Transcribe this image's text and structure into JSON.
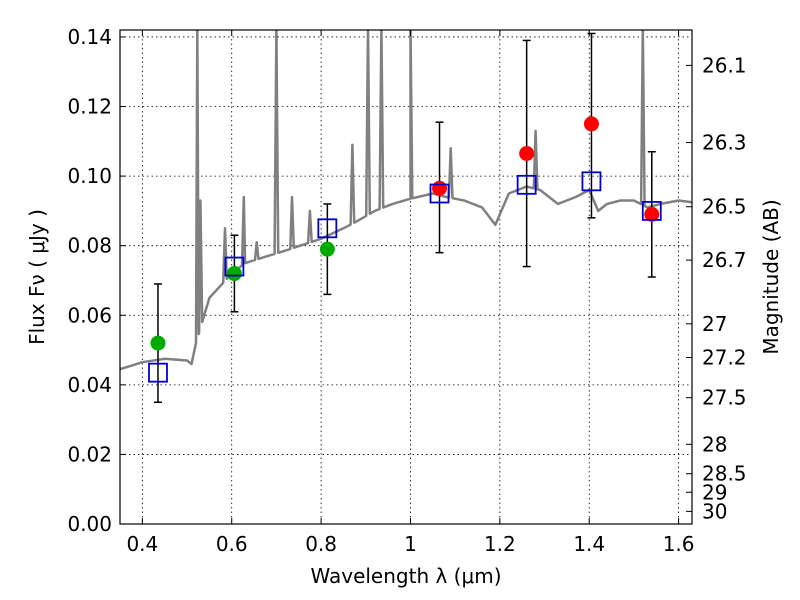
{
  "chart_data": {
    "type": "scatter",
    "xlabel": "Wavelength  λ (μm)",
    "ylabel": "Flux  Fν  ( μJy )",
    "ylabel_right": "Magnitude (AB)",
    "xlim": [
      0.35,
      1.63
    ],
    "ylim": [
      0.0,
      0.142
    ],
    "grid": true,
    "x_ticks": [
      {
        "value": 0.4,
        "label": "0.4"
      },
      {
        "value": 0.6,
        "label": "0.6"
      },
      {
        "value": 0.8,
        "label": "0.8"
      },
      {
        "value": 1.0,
        "label": "1"
      },
      {
        "value": 1.2,
        "label": "1.2"
      },
      {
        "value": 1.4,
        "label": "1.4"
      },
      {
        "value": 1.6,
        "label": "1.6"
      }
    ],
    "y_ticks": [
      {
        "value": 0.0,
        "label": "0.00"
      },
      {
        "value": 0.02,
        "label": "0.02"
      },
      {
        "value": 0.04,
        "label": "0.04"
      },
      {
        "value": 0.06,
        "label": "0.06"
      },
      {
        "value": 0.08,
        "label": "0.08"
      },
      {
        "value": 0.1,
        "label": "0.10"
      },
      {
        "value": 0.12,
        "label": "0.12"
      },
      {
        "value": 0.14,
        "label": "0.14"
      }
    ],
    "mag_ticks": [
      {
        "value": 26.1,
        "label": "26.1"
      },
      {
        "value": 26.3,
        "label": "26.3"
      },
      {
        "value": 26.5,
        "label": "26.5"
      },
      {
        "value": 26.7,
        "label": "26.7"
      },
      {
        "value": 27.0,
        "label": "27"
      },
      {
        "value": 27.2,
        "label": "27.2"
      },
      {
        "value": 27.5,
        "label": "27.5"
      },
      {
        "value": 28.0,
        "label": "28"
      },
      {
        "value": 28.5,
        "label": "28.5"
      },
      {
        "value": 29.0,
        "label": "29"
      },
      {
        "value": 30.0,
        "label": "30"
      }
    ],
    "observed": [
      {
        "x": 0.435,
        "y": 0.052,
        "yerr_low": 0.035,
        "yerr_high": 0.069,
        "color": "#00aa00"
      },
      {
        "x": 0.606,
        "y": 0.072,
        "yerr_low": 0.061,
        "yerr_high": 0.083,
        "color": "#00aa00"
      },
      {
        "x": 0.814,
        "y": 0.079,
        "yerr_low": 0.066,
        "yerr_high": 0.092,
        "color": "#00aa00"
      },
      {
        "x": 1.065,
        "y": 0.0965,
        "yerr_low": 0.078,
        "yerr_high": 0.1155,
        "color": "#ff0000"
      },
      {
        "x": 1.26,
        "y": 0.1065,
        "yerr_low": 0.074,
        "yerr_high": 0.139,
        "color": "#ff0000"
      },
      {
        "x": 1.405,
        "y": 0.115,
        "yerr_low": 0.088,
        "yerr_high": 0.141,
        "color": "#ff0000"
      },
      {
        "x": 1.54,
        "y": 0.089,
        "yerr_low": 0.071,
        "yerr_high": 0.107,
        "color": "#ff0000"
      }
    ],
    "model_points": [
      {
        "x": 0.435,
        "y": 0.0435
      },
      {
        "x": 0.606,
        "y": 0.074
      },
      {
        "x": 0.814,
        "y": 0.085
      },
      {
        "x": 1.065,
        "y": 0.095
      },
      {
        "x": 1.26,
        "y": 0.0975
      },
      {
        "x": 1.405,
        "y": 0.0985
      },
      {
        "x": 1.54,
        "y": 0.09
      }
    ],
    "model_spectrum": {
      "color": "#808080",
      "continuum": [
        [
          0.35,
          0.0445
        ],
        [
          0.4,
          0.0465
        ],
        [
          0.45,
          0.0475
        ],
        [
          0.5,
          0.047
        ],
        [
          0.51,
          0.046
        ],
        [
          0.52,
          0.052
        ],
        [
          0.55,
          0.065
        ],
        [
          0.6,
          0.072
        ],
        [
          0.63,
          0.075
        ],
        [
          0.68,
          0.077
        ],
        [
          0.73,
          0.079
        ],
        [
          0.8,
          0.082
        ],
        [
          0.85,
          0.085
        ],
        [
          0.88,
          0.087
        ],
        [
          0.92,
          0.09
        ],
        [
          0.96,
          0.092
        ],
        [
          1.0,
          0.0935
        ],
        [
          1.05,
          0.095
        ],
        [
          1.08,
          0.094
        ],
        [
          1.12,
          0.093
        ],
        [
          1.16,
          0.091
        ],
        [
          1.19,
          0.086
        ],
        [
          1.22,
          0.095
        ],
        [
          1.26,
          0.097
        ],
        [
          1.29,
          0.096
        ],
        [
          1.33,
          0.092
        ],
        [
          1.37,
          0.094
        ],
        [
          1.4,
          0.096
        ],
        [
          1.42,
          0.09
        ],
        [
          1.44,
          0.092
        ],
        [
          1.47,
          0.093
        ],
        [
          1.5,
          0.093
        ],
        [
          1.53,
          0.091
        ],
        [
          1.56,
          0.092
        ],
        [
          1.6,
          0.093
        ],
        [
          1.63,
          0.0925
        ]
      ],
      "emission_lines": [
        {
          "x": 0.523,
          "peak": 0.143
        },
        {
          "x": 0.53,
          "peak": 0.093
        },
        {
          "x": 0.585,
          "peak": 0.085
        },
        {
          "x": 0.627,
          "peak": 0.094
        },
        {
          "x": 0.656,
          "peak": 0.081
        },
        {
          "x": 0.7,
          "peak": 0.143
        },
        {
          "x": 0.735,
          "peak": 0.094
        },
        {
          "x": 0.775,
          "peak": 0.09
        },
        {
          "x": 0.87,
          "peak": 0.109
        },
        {
          "x": 0.905,
          "peak": 0.143
        },
        {
          "x": 0.935,
          "peak": 0.143
        },
        {
          "x": 1.0,
          "peak": 0.143
        },
        {
          "x": 1.09,
          "peak": 0.108
        },
        {
          "x": 1.28,
          "peak": 0.113
        },
        {
          "x": 1.52,
          "peak": 0.143
        }
      ]
    }
  }
}
